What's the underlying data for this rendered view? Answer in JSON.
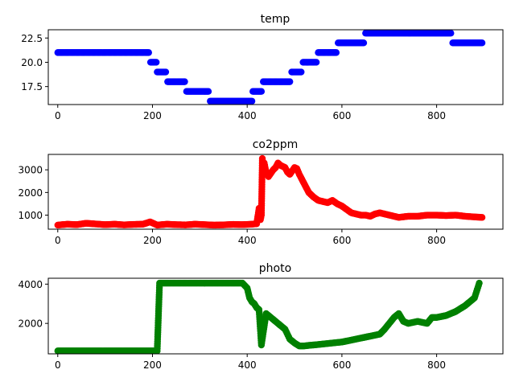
{
  "chart_data": [
    {
      "type": "scatter",
      "title": "temp",
      "color": "#0000ff",
      "xlim": [
        -20,
        940
      ],
      "ylim": [
        15.65,
        23.35
      ],
      "xticks": [
        0,
        200,
        400,
        600,
        800
      ],
      "yticks": [
        17.5,
        20.0,
        22.5
      ],
      "ytick_labels": [
        "17.5",
        "20.0",
        "22.5"
      ],
      "segments": [
        {
          "x_start": 0,
          "x_end": 192,
          "y": 21
        },
        {
          "x_start": 196,
          "x_end": 208,
          "y": 20
        },
        {
          "x_start": 210,
          "x_end": 228,
          "y": 19
        },
        {
          "x_start": 232,
          "x_end": 268,
          "y": 18
        },
        {
          "x_start": 272,
          "x_end": 318,
          "y": 17
        },
        {
          "x_start": 322,
          "x_end": 410,
          "y": 16
        },
        {
          "x_start": 412,
          "x_end": 430,
          "y": 17
        },
        {
          "x_start": 434,
          "x_end": 490,
          "y": 18
        },
        {
          "x_start": 494,
          "x_end": 514,
          "y": 19
        },
        {
          "x_start": 518,
          "x_end": 546,
          "y": 20
        },
        {
          "x_start": 550,
          "x_end": 588,
          "y": 21
        },
        {
          "x_start": 592,
          "x_end": 646,
          "y": 22
        },
        {
          "x_start": 650,
          "x_end": 830,
          "y": 23
        },
        {
          "x_start": 834,
          "x_end": 896,
          "y": 22
        }
      ]
    },
    {
      "type": "scatter",
      "title": "co2ppm",
      "color": "#ff0000",
      "xlim": [
        -20,
        940
      ],
      "ylim": [
        380,
        3680
      ],
      "xticks": [
        0,
        200,
        400,
        600,
        800
      ],
      "yticks": [
        1000,
        2000,
        3000
      ],
      "ytick_labels": [
        "1000",
        "2000",
        "3000"
      ],
      "x": [
        0,
        20,
        40,
        60,
        80,
        100,
        120,
        140,
        160,
        180,
        195,
        210,
        230,
        250,
        270,
        290,
        310,
        330,
        350,
        370,
        390,
        410,
        420,
        425,
        428,
        430,
        432,
        434,
        436,
        440,
        445,
        450,
        455,
        460,
        465,
        470,
        475,
        480,
        485,
        490,
        495,
        500,
        505,
        510,
        515,
        520,
        525,
        530,
        540,
        550,
        560,
        570,
        580,
        590,
        600,
        610,
        620,
        630,
        640,
        650,
        660,
        670,
        680,
        690,
        700,
        710,
        720,
        740,
        760,
        780,
        800,
        820,
        840,
        860,
        880,
        896
      ],
      "y": [
        560,
        600,
        580,
        640,
        610,
        580,
        600,
        570,
        590,
        600,
        700,
        560,
        600,
        580,
        570,
        600,
        580,
        560,
        570,
        590,
        580,
        600,
        620,
        1300,
        800,
        1000,
        3500,
        3100,
        3300,
        2900,
        2700,
        2850,
        3000,
        3100,
        3300,
        3200,
        3150,
        3100,
        2900,
        2800,
        2950,
        3100,
        3050,
        2800,
        2600,
        2400,
        2200,
        2000,
        1800,
        1650,
        1600,
        1550,
        1650,
        1500,
        1400,
        1250,
        1100,
        1050,
        1000,
        1000,
        950,
        1050,
        1100,
        1050,
        1000,
        950,
        900,
        950,
        950,
        1000,
        1000,
        980,
        1000,
        950,
        920,
        900
      ]
    },
    {
      "type": "scatter",
      "title": "photo",
      "color": "#008000",
      "xlim": [
        -20,
        940
      ],
      "ylim": [
        450,
        4300
      ],
      "xticks": [
        0,
        200,
        400,
        600,
        800
      ],
      "yticks": [
        2000,
        4000
      ],
      "ytick_labels": [
        "2000",
        "4000"
      ],
      "x": [
        0,
        20,
        40,
        60,
        80,
        100,
        120,
        140,
        160,
        180,
        200,
        210,
        215,
        240,
        270,
        300,
        330,
        360,
        390,
        400,
        405,
        410,
        415,
        420,
        425,
        430,
        440,
        450,
        460,
        470,
        480,
        490,
        500,
        510,
        520,
        530,
        540,
        560,
        580,
        600,
        620,
        640,
        660,
        680,
        690,
        700,
        710,
        720,
        730,
        740,
        760,
        780,
        790,
        800,
        820,
        840,
        860,
        880,
        890
      ],
      "y": [
        600,
        600,
        600,
        600,
        600,
        600,
        600,
        600,
        600,
        600,
        600,
        600,
        4050,
        4050,
        4050,
        4050,
        4050,
        4050,
        4050,
        3800,
        3300,
        3100,
        3000,
        2800,
        2700,
        900,
        2500,
        2300,
        2100,
        1900,
        1700,
        1200,
        1000,
        850,
        850,
        880,
        900,
        950,
        1000,
        1050,
        1150,
        1250,
        1350,
        1450,
        1700,
        2000,
        2300,
        2500,
        2100,
        2000,
        2100,
        2000,
        2300,
        2300,
        2400,
        2600,
        2900,
        3300,
        4050
      ]
    }
  ]
}
